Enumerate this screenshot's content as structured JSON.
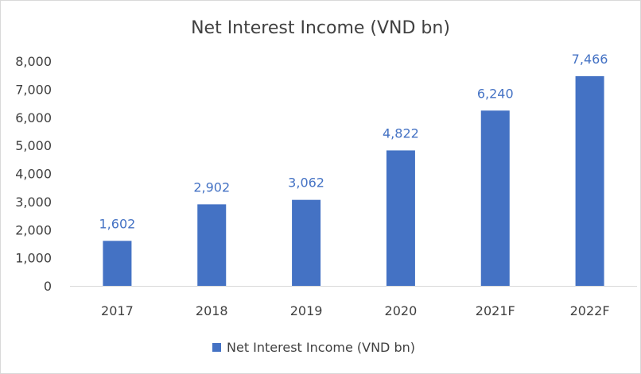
{
  "chart_data": {
    "type": "bar",
    "title": "Net Interest Income (VND bn)",
    "categories": [
      "2017",
      "2018",
      "2019",
      "2020",
      "2021F",
      "2022F"
    ],
    "series": [
      {
        "name": "Net Interest Income (VND bn)",
        "values": [
          1602,
          2902,
          3062,
          4822,
          6240,
          7466
        ],
        "labels": [
          "1,602",
          "2,902",
          "3,062",
          "4,822",
          "6,240",
          "7,466"
        ]
      }
    ],
    "ylim": [
      0,
      8000
    ],
    "yticks": [
      0,
      1000,
      2000,
      3000,
      4000,
      5000,
      6000,
      7000,
      8000
    ],
    "ytick_labels": [
      "0",
      "1,000",
      "2,000",
      "3,000",
      "4,000",
      "5,000",
      "6,000",
      "7,000",
      "8,000"
    ],
    "xlabel": "",
    "ylabel": "",
    "grid": false,
    "legend": "bottom",
    "colors": {
      "bar": "#4472c4",
      "label": "#4472c4",
      "axis": "#d9d9d9",
      "text": "#404040"
    }
  }
}
